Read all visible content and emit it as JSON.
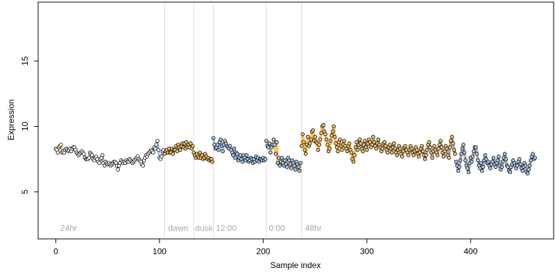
{
  "chart_data": {
    "type": "scatter",
    "xlabel": "Sample index",
    "ylabel": "Expression",
    "xlim": [
      -17,
      480
    ],
    "ylim": [
      1.4,
      19.5
    ],
    "x_ticks": [
      0,
      100,
      200,
      300,
      400
    ],
    "x_tick_labels": [
      "0",
      "100",
      "200",
      "300",
      "400"
    ],
    "y_ticks": [
      5,
      10,
      15
    ],
    "y_tick_labels": [
      "5",
      "10",
      "15"
    ],
    "grid": false,
    "vlines": [
      105,
      133,
      152,
      203,
      237
    ],
    "annotations": [
      {
        "text": "24hr",
        "x": 3
      },
      {
        "text": "dawn",
        "x": 107
      },
      {
        "text": "dusk",
        "x": 133
      },
      {
        "text": "12:00",
        "x": 153
      },
      {
        "text": "0:00",
        "x": 204
      },
      {
        "text": "48hr",
        "x": 239
      }
    ],
    "annotation_y": 2.0,
    "colors": {
      "orange": "#f5c16c",
      "blue": "#a9c8ec",
      "gray": "#ababab",
      "white": "#ffffff",
      "black": "#000000",
      "vline": "#dddddd"
    },
    "segments": [
      {
        "x_start": 0,
        "x_end": 30,
        "fill": "white",
        "line": "orange",
        "y": [
          8.3,
          8.2,
          8.0,
          8.4,
          8.5,
          8.6,
          8.0,
          8.1,
          8.0,
          8.2,
          8.3,
          8.2,
          8.1,
          8.2,
          8.3,
          8.1,
          8.3,
          8.4,
          8.4,
          8.2,
          8.0,
          7.9,
          7.8,
          7.9,
          8.0,
          8.1,
          8.0,
          7.9,
          7.6,
          7.5,
          7.5
        ]
      },
      {
        "x_start": 31,
        "x_end": 104,
        "fill": "white",
        "line": "blue",
        "y": [
          7.5,
          7.6,
          8.0,
          7.9,
          7.8,
          7.5,
          7.4,
          7.6,
          7.7,
          7.5,
          7.3,
          7.2,
          7.5,
          7.6,
          7.8,
          7.2,
          7.0,
          7.3,
          7.2,
          7.1,
          7.2,
          7.1,
          7.0,
          7.1,
          7.2,
          7.3,
          7.3,
          7.2,
          7.0,
          6.7,
          7.0,
          7.2,
          7.4,
          7.3,
          7.2,
          7.3,
          7.2,
          7.4,
          7.3,
          7.3,
          7.5,
          7.4,
          7.3,
          7.2,
          7.3,
          7.4,
          7.5,
          7.6,
          7.7,
          7.5,
          7.4,
          7.3,
          7.1,
          7.0,
          7.4,
          7.6,
          7.8,
          7.7,
          7.9,
          8.0,
          8.1,
          8.2,
          8.1,
          8.0,
          8.4,
          8.3,
          8.6,
          8.9,
          8.2,
          7.6,
          7.5,
          7.7,
          8.1,
          8.2
        ]
      },
      {
        "x_start": 105,
        "x_end": 132,
        "fill": "orange",
        "line": "gray",
        "y": [
          7.9,
          8.1,
          8.2,
          8.0,
          8.3,
          8.0,
          8.0,
          8.3,
          7.9,
          8.2,
          8.2,
          8.5,
          8.1,
          8.6,
          8.4,
          8.2,
          8.5,
          8.7,
          8.4,
          8.7,
          8.3,
          8.8,
          8.4,
          8.6,
          8.4,
          8.7,
          8.3,
          8.5
        ]
      },
      {
        "x_start": 133,
        "x_end": 151,
        "fill": "orange",
        "line": "orange",
        "y": [
          8.0,
          7.8,
          7.6,
          7.9,
          7.7,
          7.6,
          8.0,
          7.6,
          7.8,
          7.5,
          7.6,
          7.9,
          7.7,
          7.5,
          7.6,
          7.4,
          7.5,
          7.5,
          7.3
        ]
      },
      {
        "x_start": 152,
        "x_end": 202,
        "fill": "blue",
        "line": "blue",
        "y": [
          9.1,
          8.6,
          8.3,
          8.4,
          8.6,
          8.2,
          8.8,
          9.0,
          8.5,
          8.1,
          8.6,
          8.9,
          8.7,
          8.5,
          8.4,
          8.3,
          8.5,
          8.2,
          8.0,
          7.8,
          8.3,
          7.6,
          8.0,
          7.9,
          7.4,
          7.6,
          7.8,
          7.5,
          7.3,
          7.8,
          7.6,
          7.4,
          7.8,
          7.5,
          7.3,
          7.4,
          7.6,
          7.5,
          7.2,
          7.5,
          7.3,
          7.7,
          7.4,
          7.6,
          7.3,
          7.5,
          7.5,
          7.4,
          7.6,
          7.4,
          7.5
        ]
      },
      {
        "x_start": 203,
        "x_end": 236,
        "fill": "blue",
        "line": "orange",
        "y": [
          8.9,
          8.5,
          8.4,
          8.7,
          8.0,
          8.4,
          8.6,
          9.0,
          8.6,
          7.9,
          8.8,
          7.2,
          7.6,
          7.0,
          7.3,
          7.6,
          7.2,
          7.0,
          7.4,
          7.1,
          6.9,
          7.6,
          7.4,
          7.1,
          6.8,
          7.4,
          7.2,
          7.0,
          6.7,
          7.3,
          7.1,
          6.9,
          6.6,
          7.2
        ]
      },
      {
        "x_start": 237,
        "x_end": 289,
        "fill": "orange",
        "line": "orange",
        "y": [
          8.5,
          9.4,
          8.8,
          8.2,
          7.9,
          8.6,
          9.2,
          8.5,
          8.7,
          9.0,
          9.6,
          9.7,
          8.9,
          9.2,
          8.8,
          8.7,
          8.2,
          8.6,
          9.0,
          9.5,
          10.0,
          10.1,
          9.6,
          9.4,
          9.0,
          8.6,
          8.1,
          8.3,
          8.9,
          9.3,
          9.6,
          10.0,
          9.2,
          8.7,
          8.4,
          8.1,
          8.8,
          9.0,
          8.5,
          8.2,
          8.6,
          8.9,
          8.5,
          8.3,
          8.1,
          8.5,
          8.7,
          8.2,
          8.0,
          7.5,
          7.3,
          7.8,
          8.4
        ]
      },
      {
        "x_start": 290,
        "x_end": 385,
        "fill": "orange",
        "line": "gray",
        "y": [
          8.8,
          8.2,
          8.6,
          9.0,
          8.7,
          8.3,
          8.1,
          8.6,
          8.9,
          8.4,
          8.2,
          8.7,
          9.0,
          8.8,
          8.4,
          8.6,
          9.2,
          8.8,
          8.5,
          8.3,
          8.7,
          9.0,
          8.6,
          8.4,
          8.1,
          8.3,
          8.7,
          8.8,
          8.5,
          8.2,
          8.0,
          8.4,
          8.6,
          8.3,
          8.0,
          8.4,
          8.7,
          8.3,
          8.0,
          7.8,
          8.2,
          8.5,
          8.3,
          7.9,
          7.7,
          8.1,
          8.4,
          8.5,
          8.2,
          8.0,
          7.8,
          8.2,
          8.5,
          8.3,
          8.0,
          7.8,
          8.1,
          8.4,
          8.2,
          7.9,
          7.7,
          8.0,
          8.3,
          8.5,
          8.1,
          7.8,
          7.5,
          7.8,
          8.2,
          8.6,
          8.8,
          8.4,
          8.0,
          7.6,
          8.1,
          8.5,
          8.2,
          8.0,
          7.8,
          8.3,
          8.6,
          8.9,
          8.4,
          8.0,
          7.7,
          8.1,
          8.5,
          8.3,
          7.8,
          7.6,
          8.4,
          8.9,
          9.2,
          8.7,
          8.2,
          7.9
        ]
      },
      {
        "x_start": 386,
        "x_end": 462,
        "fill": "blue",
        "line": "gray",
        "y": [
          7.3,
          7.0,
          6.6,
          6.9,
          7.4,
          7.9,
          8.3,
          8.6,
          8.0,
          7.4,
          7.0,
          6.8,
          6.5,
          7.2,
          7.6,
          7.3,
          7.7,
          8.1,
          8.4,
          8.4,
          7.9,
          7.4,
          7.0,
          6.8,
          7.2,
          6.6,
          6.9,
          7.4,
          7.8,
          7.5,
          7.2,
          7.3,
          7.0,
          6.8,
          7.1,
          7.3,
          7.6,
          7.1,
          6.9,
          7.2,
          7.4,
          7.7,
          7.0,
          6.7,
          6.9,
          7.3,
          7.6,
          7.9,
          7.5,
          7.0,
          6.9,
          6.6,
          6.5,
          6.9,
          7.1,
          7.4,
          7.2,
          7.0,
          6.8,
          7.0,
          7.3,
          7.5,
          7.1,
          6.8,
          6.6,
          6.9,
          7.2,
          7.0,
          6.5,
          6.4,
          6.7,
          7.0,
          7.4,
          7.7,
          7.9,
          7.5,
          7.6
        ]
      }
    ]
  }
}
